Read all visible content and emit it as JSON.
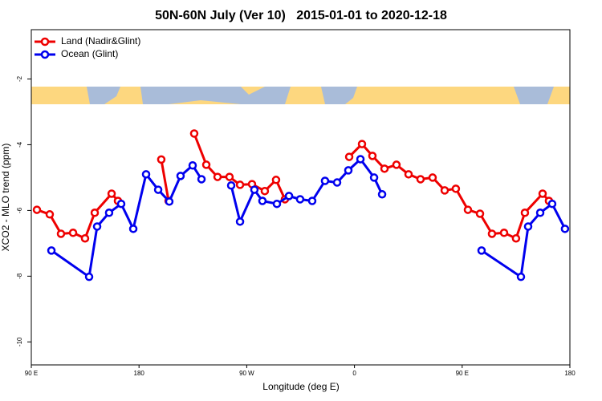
{
  "chart_data": {
    "type": "line",
    "title": "50N-60N July (Ver 10)   2015-01-01 to 2020-12-18",
    "x_label": "Longitude (deg E)",
    "y_label": "XCO2 - MLO trend (ppm)",
    "legend": "top-left",
    "xlim": [
      90,
      540
    ],
    "xticks": [
      {
        "value": 90,
        "label": "90 E"
      },
      {
        "value": 180,
        "label": "180"
      },
      {
        "value": 270,
        "label": "90 W"
      },
      {
        "value": 360,
        "label": "0"
      },
      {
        "value": 450,
        "label": "90 E"
      },
      {
        "value": 540,
        "label": "180"
      }
    ],
    "ylim": [
      -10.7,
      -0.5
    ],
    "yticks": [
      -2,
      -4,
      -6,
      -8,
      -10
    ],
    "series": [
      {
        "name": "Land (Nadir&Glint)",
        "color": "#ee0000",
        "x": [
          94.7,
          105.4,
          114.8,
          124.9,
          134.9,
          143.0,
          157.1,
          162.4,
          null,
          198.6,
          204.7,
          null,
          226.1,
          236.2,
          245.6,
          255.6,
          264.4,
          274.4,
          285.1,
          294.5,
          301.9,
          null,
          355.6,
          366.3,
          375.0,
          385.1,
          395.1,
          405.2,
          415.2,
          425.3,
          435.4,
          444.7,
          454.8,
          464.9,
          474.9,
          485.0,
          495.0,
          502.4,
          517.2,
          522.5
        ],
        "values": [
          -5.98,
          -6.12,
          -6.71,
          -6.68,
          -6.85,
          -6.07,
          -5.49,
          -5.71,
          null,
          -4.45,
          -5.71,
          null,
          -3.66,
          -4.61,
          -4.98,
          -4.98,
          -5.22,
          -5.2,
          -5.41,
          -5.07,
          -5.66,
          null,
          -4.37,
          -3.98,
          -4.34,
          -4.73,
          -4.61,
          -4.9,
          -5.05,
          -5.0,
          -5.39,
          -5.34,
          -5.98,
          -6.1,
          -6.71,
          -6.68,
          -6.85,
          -6.07,
          -5.49,
          -5.71
        ]
      },
      {
        "name": "Ocean (Glint)",
        "color": "#0000ee",
        "x": [
          106.8,
          138.3,
          145.0,
          155.0,
          165.1,
          175.2,
          185.9,
          196.0,
          205.3,
          214.7,
          224.8,
          232.2,
          null,
          257.0,
          264.4,
          276.4,
          283.1,
          295.2,
          305.3,
          314.6,
          324.7,
          335.4,
          345.5,
          354.9,
          365.0,
          376.4,
          383.1,
          null,
          466.2,
          499.1,
          505.1,
          515.2,
          525.2,
          535.9
        ],
        "values": [
          -7.22,
          -8.02,
          -6.49,
          -6.07,
          -5.8,
          -6.56,
          -4.9,
          -5.37,
          -5.73,
          -4.95,
          -4.63,
          -5.05,
          null,
          -5.24,
          -6.34,
          -5.37,
          -5.71,
          -5.8,
          -5.56,
          -5.66,
          -5.71,
          -5.1,
          -5.15,
          -4.78,
          -4.44,
          -5.0,
          -5.51,
          null,
          -7.22,
          -8.02,
          -6.49,
          -6.07,
          -5.8,
          -6.56
        ]
      }
    ]
  }
}
